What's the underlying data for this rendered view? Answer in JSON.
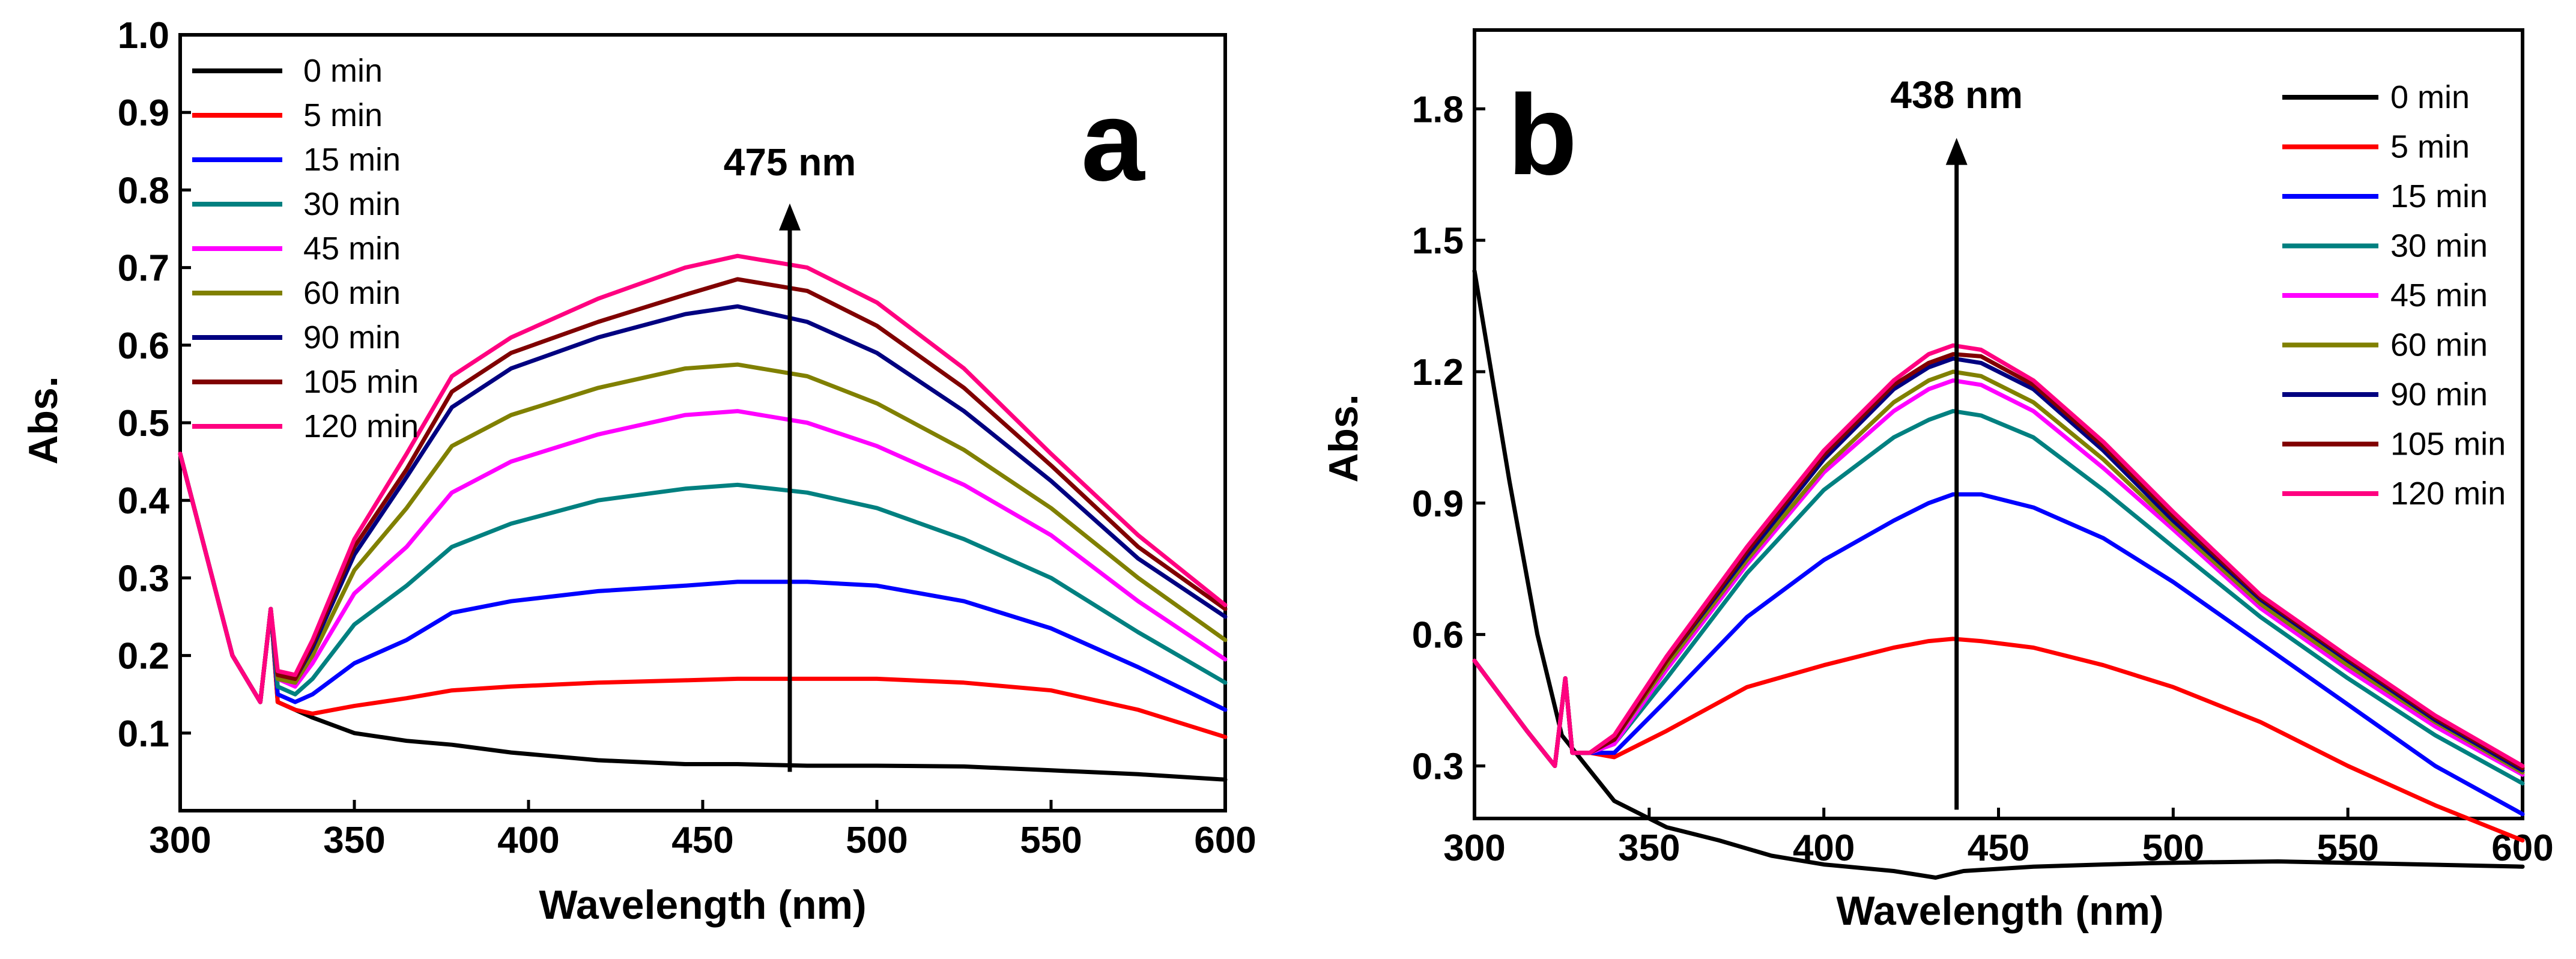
{
  "colors": {
    "0 min": "#000000",
    "5 min": "#ff0000",
    "15 min": "#0000ff",
    "30 min": "#008080",
    "45 min": "#ff00ff",
    "60 min": "#808000",
    "90 min": "#000080",
    "105 min": "#800000",
    "120 min": "#ff0080"
  },
  "chart_data": [
    {
      "type": "line",
      "panel": "a",
      "xlabel": "Wavelength (nm)",
      "ylabel": "Abs.",
      "xlim": [
        300,
        600
      ],
      "ylim": [
        0,
        1.0
      ],
      "xticks": [
        300,
        350,
        400,
        450,
        500,
        550,
        600
      ],
      "yticks": [
        0.1,
        0.2,
        0.3,
        0.4,
        0.5,
        0.6,
        0.7,
        0.8,
        0.9,
        1.0
      ],
      "ytick_labels": [
        "0.1",
        "0.2",
        "0.3",
        "0.4",
        "0.5",
        "0.6",
        "0.7",
        "0.8",
        "0.9",
        "1.0"
      ],
      "legend_position": "top-left",
      "annotation": {
        "text": "475 nm",
        "x": 475,
        "y_from": 0.05,
        "y_to": 0.775
      },
      "x": [
        300,
        315,
        323,
        326,
        328,
        333,
        338,
        350,
        365,
        378,
        395,
        420,
        445,
        460,
        480,
        500,
        525,
        550,
        575,
        600
      ],
      "series": [
        {
          "name": "0 min",
          "values": [
            0.46,
            0.2,
            0.14,
            0.26,
            0.14,
            0.13,
            0.12,
            0.1,
            0.09,
            0.085,
            0.075,
            0.065,
            0.06,
            0.06,
            0.058,
            0.058,
            0.057,
            0.052,
            0.047,
            0.04
          ]
        },
        {
          "name": "5 min",
          "values": [
            0.46,
            0.2,
            0.14,
            0.26,
            0.14,
            0.13,
            0.125,
            0.135,
            0.145,
            0.155,
            0.16,
            0.165,
            0.168,
            0.17,
            0.17,
            0.17,
            0.165,
            0.155,
            0.13,
            0.095
          ]
        },
        {
          "name": "15 min",
          "values": [
            0.46,
            0.2,
            0.14,
            0.26,
            0.15,
            0.14,
            0.15,
            0.19,
            0.22,
            0.255,
            0.27,
            0.283,
            0.29,
            0.295,
            0.295,
            0.29,
            0.27,
            0.235,
            0.185,
            0.13
          ]
        },
        {
          "name": "30 min",
          "values": [
            0.46,
            0.2,
            0.14,
            0.26,
            0.16,
            0.15,
            0.17,
            0.24,
            0.29,
            0.34,
            0.37,
            0.4,
            0.415,
            0.42,
            0.41,
            0.39,
            0.35,
            0.3,
            0.23,
            0.165
          ]
        },
        {
          "name": "45 min",
          "values": [
            0.46,
            0.2,
            0.14,
            0.26,
            0.17,
            0.16,
            0.19,
            0.28,
            0.34,
            0.41,
            0.45,
            0.485,
            0.51,
            0.515,
            0.5,
            0.47,
            0.42,
            0.355,
            0.27,
            0.195
          ]
        },
        {
          "name": "60 min",
          "values": [
            0.46,
            0.2,
            0.14,
            0.26,
            0.17,
            0.165,
            0.2,
            0.31,
            0.39,
            0.47,
            0.51,
            0.545,
            0.57,
            0.575,
            0.56,
            0.525,
            0.465,
            0.39,
            0.3,
            0.22
          ]
        },
        {
          "name": "90 min",
          "values": [
            0.46,
            0.2,
            0.14,
            0.26,
            0.175,
            0.17,
            0.21,
            0.33,
            0.43,
            0.52,
            0.57,
            0.61,
            0.64,
            0.65,
            0.63,
            0.59,
            0.515,
            0.425,
            0.325,
            0.25
          ]
        },
        {
          "name": "105 min",
          "values": [
            0.46,
            0.2,
            0.14,
            0.26,
            0.175,
            0.17,
            0.215,
            0.34,
            0.44,
            0.54,
            0.59,
            0.63,
            0.665,
            0.685,
            0.67,
            0.625,
            0.545,
            0.445,
            0.34,
            0.26
          ]
        },
        {
          "name": "120 min",
          "values": [
            0.46,
            0.2,
            0.14,
            0.26,
            0.18,
            0.175,
            0.22,
            0.35,
            0.46,
            0.56,
            0.61,
            0.66,
            0.7,
            0.715,
            0.7,
            0.655,
            0.57,
            0.46,
            0.355,
            0.265
          ]
        }
      ]
    },
    {
      "type": "line",
      "panel": "b",
      "xlabel": "Wavelength (nm)",
      "ylabel": "Abs.",
      "xlim": [
        300,
        600
      ],
      "ylim": [
        0.18,
        1.98
      ],
      "xticks": [
        300,
        350,
        400,
        450,
        500,
        550,
        600
      ],
      "yticks": [
        0.3,
        0.6,
        0.9,
        1.2,
        1.5,
        1.8
      ],
      "ytick_labels": [
        "0.3",
        "0.6",
        "0.9",
        "1.2",
        "1.5",
        "1.8"
      ],
      "legend_position": "top-right",
      "annotation": {
        "text": "438 nm",
        "x": 438,
        "y_from": 0.2,
        "y_to": 1.72
      },
      "x0": [
        300,
        310,
        318,
        325,
        332,
        340,
        355,
        370,
        385,
        400,
        420,
        432,
        440,
        460,
        480,
        494,
        510,
        530,
        560,
        600
      ],
      "zero_min_values": [
        1.43,
        0.95,
        0.6,
        0.37,
        0.3,
        0.22,
        0.16,
        0.13,
        0.095,
        0.075,
        0.06,
        0.045,
        0.06,
        0.07,
        0.075,
        0.078,
        0.08,
        0.082,
        0.077,
        0.07
      ],
      "x": [
        300,
        315,
        323,
        326,
        328,
        333,
        340,
        355,
        378,
        400,
        420,
        430,
        437,
        445,
        460,
        480,
        500,
        525,
        550,
        575,
        600
      ],
      "series": [
        {
          "name": "5 min",
          "values": [
            0.54,
            0.38,
            0.3,
            0.5,
            0.33,
            0.33,
            0.32,
            0.38,
            0.48,
            0.53,
            0.57,
            0.585,
            0.59,
            0.585,
            0.57,
            0.53,
            0.48,
            0.4,
            0.3,
            0.21,
            0.13
          ]
        },
        {
          "name": "15 min",
          "values": [
            0.54,
            0.38,
            0.3,
            0.5,
            0.33,
            0.33,
            0.33,
            0.45,
            0.64,
            0.77,
            0.86,
            0.9,
            0.92,
            0.92,
            0.89,
            0.82,
            0.72,
            0.58,
            0.44,
            0.3,
            0.19
          ]
        },
        {
          "name": "30 min",
          "values": [
            0.54,
            0.38,
            0.3,
            0.5,
            0.33,
            0.33,
            0.35,
            0.5,
            0.74,
            0.93,
            1.05,
            1.09,
            1.11,
            1.1,
            1.05,
            0.93,
            0.8,
            0.64,
            0.5,
            0.37,
            0.26
          ]
        },
        {
          "name": "45 min",
          "values": [
            0.54,
            0.38,
            0.3,
            0.5,
            0.33,
            0.33,
            0.35,
            0.52,
            0.76,
            0.97,
            1.11,
            1.16,
            1.18,
            1.17,
            1.11,
            0.98,
            0.84,
            0.66,
            0.52,
            0.39,
            0.28
          ]
        },
        {
          "name": "60 min",
          "values": [
            0.54,
            0.38,
            0.3,
            0.5,
            0.33,
            0.33,
            0.36,
            0.53,
            0.77,
            0.98,
            1.13,
            1.18,
            1.2,
            1.19,
            1.13,
            1.0,
            0.85,
            0.67,
            0.53,
            0.4,
            0.285
          ]
        },
        {
          "name": "90 min",
          "values": [
            0.54,
            0.38,
            0.3,
            0.5,
            0.33,
            0.33,
            0.36,
            0.54,
            0.78,
            1.0,
            1.16,
            1.21,
            1.23,
            1.22,
            1.16,
            1.02,
            0.86,
            0.68,
            0.54,
            0.405,
            0.29
          ]
        },
        {
          "name": "105 min",
          "values": [
            0.54,
            0.38,
            0.3,
            0.5,
            0.33,
            0.33,
            0.36,
            0.54,
            0.79,
            1.01,
            1.17,
            1.22,
            1.24,
            1.235,
            1.17,
            1.03,
            0.87,
            0.685,
            0.545,
            0.41,
            0.295
          ]
        },
        {
          "name": "120 min",
          "values": [
            0.54,
            0.38,
            0.3,
            0.5,
            0.33,
            0.33,
            0.37,
            0.55,
            0.8,
            1.02,
            1.18,
            1.24,
            1.26,
            1.25,
            1.18,
            1.04,
            0.88,
            0.69,
            0.55,
            0.415,
            0.3
          ]
        }
      ],
      "legend_order": [
        "0 min",
        "5 min",
        "15 min",
        "30 min",
        "45 min",
        "60 min",
        "90 min",
        "105 min",
        "120 min"
      ]
    }
  ]
}
